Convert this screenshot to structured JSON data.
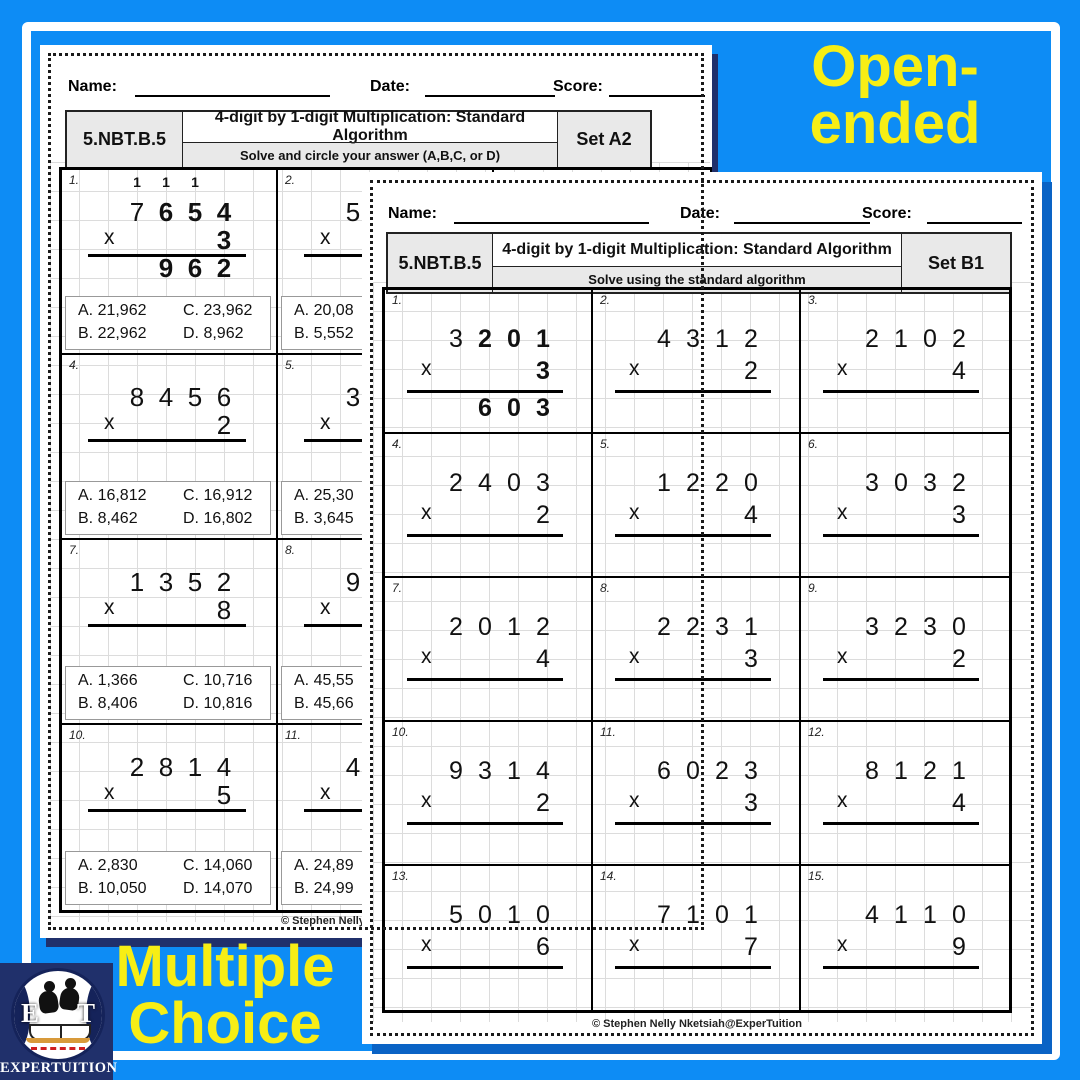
{
  "decor": {
    "open_ended": [
      "Open-",
      "ended"
    ],
    "multiple_choice": [
      "Multiple",
      "Choice"
    ]
  },
  "logo": {
    "letter_left": "E",
    "letter_right": "T",
    "name": "EXPERTUITION"
  },
  "colors": {
    "background": "#0d8cf5",
    "frame": "#ffffff",
    "accent_yellow": "#f7ee15",
    "navy": "#20306b",
    "front_shadow": "#0a63c5",
    "header_gray": "#e9e9e9"
  },
  "sheet_a": {
    "name_label": "Name:",
    "date_label": "Date:",
    "score_label": "Score:",
    "standard": "5.NBT.B.5",
    "title": "4-digit by 1-digit Multiplication: Standard Algorithm",
    "instruction": "Solve and circle your answer (A,B,C, or D)",
    "set_label": "Set A2",
    "footer": "© Stephen Nelly Nketsiah@ExperTuition",
    "problems": [
      {
        "num": "1.",
        "row": 0,
        "col": 0,
        "carries": [
          "1",
          "1",
          "1"
        ],
        "digits": [
          "7",
          "6",
          "5",
          "4"
        ],
        "bold": [
          false,
          true,
          true,
          true
        ],
        "multiplier": "3",
        "multiplier_bold": true,
        "product": [
          "9",
          "6",
          "2"
        ],
        "choices": {
          "A": "21,962",
          "B": "22,962",
          "C": "23,962",
          "D": "8,962"
        }
      },
      {
        "num": "2.",
        "row": 0,
        "col": 1,
        "digits": [
          "5"
        ],
        "choices": {
          "A": "20,08",
          "B": "5,552"
        }
      },
      {
        "num": "4.",
        "row": 1,
        "col": 0,
        "digits": [
          "8",
          "4",
          "5",
          "6"
        ],
        "multiplier": "2",
        "choices": {
          "A": "16,812",
          "B": "8,462",
          "C": "16,912",
          "D": "16,802"
        }
      },
      {
        "num": "5.",
        "row": 1,
        "col": 1,
        "digits": [
          "3"
        ],
        "choices": {
          "A": "25,30",
          "B": "3,645"
        }
      },
      {
        "num": "7.",
        "row": 2,
        "col": 0,
        "digits": [
          "1",
          "3",
          "5",
          "2"
        ],
        "multiplier": "8",
        "choices": {
          "A": "1,366",
          "B": "8,406",
          "C": "10,716",
          "D": "10,816"
        }
      },
      {
        "num": "8.",
        "row": 2,
        "col": 1,
        "digits": [
          "9"
        ],
        "choices": {
          "A": "45,55",
          "B": "45,66"
        }
      },
      {
        "num": "10.",
        "row": 3,
        "col": 0,
        "digits": [
          "2",
          "8",
          "1",
          "4"
        ],
        "multiplier": "5",
        "choices": {
          "A": "2,830",
          "B": "10,050",
          "C": "14,060",
          "D": "14,070"
        }
      },
      {
        "num": "11.",
        "row": 3,
        "col": 1,
        "digits": [
          "4"
        ],
        "choices": {
          "A": "24,89",
          "B": "24,99"
        }
      }
    ]
  },
  "sheet_b": {
    "name_label": "Name:",
    "date_label": "Date:",
    "score_label": "Score:",
    "standard": "5.NBT.B.5",
    "title": "4-digit by 1-digit Multiplication: Standard Algorithm",
    "instruction": "Solve using the standard algorithm",
    "set_label": "Set B1",
    "footer": "© Stephen Nelly Nketsiah@ExperTuition",
    "problems": [
      {
        "num": "1.",
        "row": 0,
        "col": 0,
        "digits": [
          "3",
          "2",
          "0",
          "1"
        ],
        "bold": [
          false,
          true,
          true,
          true
        ],
        "multiplier": "3",
        "multiplier_bold": true,
        "product": [
          "6",
          "0",
          "3"
        ]
      },
      {
        "num": "2.",
        "row": 0,
        "col": 1,
        "digits": [
          "4",
          "3",
          "1",
          "2"
        ],
        "multiplier": "2"
      },
      {
        "num": "3.",
        "row": 0,
        "col": 2,
        "digits": [
          "2",
          "1",
          "0",
          "2"
        ],
        "multiplier": "4"
      },
      {
        "num": "4.",
        "row": 1,
        "col": 0,
        "digits": [
          "2",
          "4",
          "0",
          "3"
        ],
        "multiplier": "2"
      },
      {
        "num": "5.",
        "row": 1,
        "col": 1,
        "digits": [
          "1",
          "2",
          "2",
          "0"
        ],
        "multiplier": "4"
      },
      {
        "num": "6.",
        "row": 1,
        "col": 2,
        "digits": [
          "3",
          "0",
          "3",
          "2"
        ],
        "multiplier": "3"
      },
      {
        "num": "7.",
        "row": 2,
        "col": 0,
        "digits": [
          "2",
          "0",
          "1",
          "2"
        ],
        "multiplier": "4"
      },
      {
        "num": "8.",
        "row": 2,
        "col": 1,
        "digits": [
          "2",
          "2",
          "3",
          "1"
        ],
        "multiplier": "3"
      },
      {
        "num": "9.",
        "row": 2,
        "col": 2,
        "digits": [
          "3",
          "2",
          "3",
          "0"
        ],
        "multiplier": "2"
      },
      {
        "num": "10.",
        "row": 3,
        "col": 0,
        "digits": [
          "9",
          "3",
          "1",
          "4"
        ],
        "multiplier": "2"
      },
      {
        "num": "11.",
        "row": 3,
        "col": 1,
        "digits": [
          "6",
          "0",
          "2",
          "3"
        ],
        "multiplier": "3"
      },
      {
        "num": "12.",
        "row": 3,
        "col": 2,
        "digits": [
          "8",
          "1",
          "2",
          "1"
        ],
        "multiplier": "4"
      },
      {
        "num": "13.",
        "row": 4,
        "col": 0,
        "digits": [
          "5",
          "0",
          "1",
          "0"
        ],
        "multiplier": "6"
      },
      {
        "num": "14.",
        "row": 4,
        "col": 1,
        "digits": [
          "7",
          "1",
          "0",
          "1"
        ],
        "multiplier": "7"
      },
      {
        "num": "15.",
        "row": 4,
        "col": 2,
        "digits": [
          "4",
          "1",
          "1",
          "0"
        ],
        "multiplier": "9"
      }
    ]
  }
}
